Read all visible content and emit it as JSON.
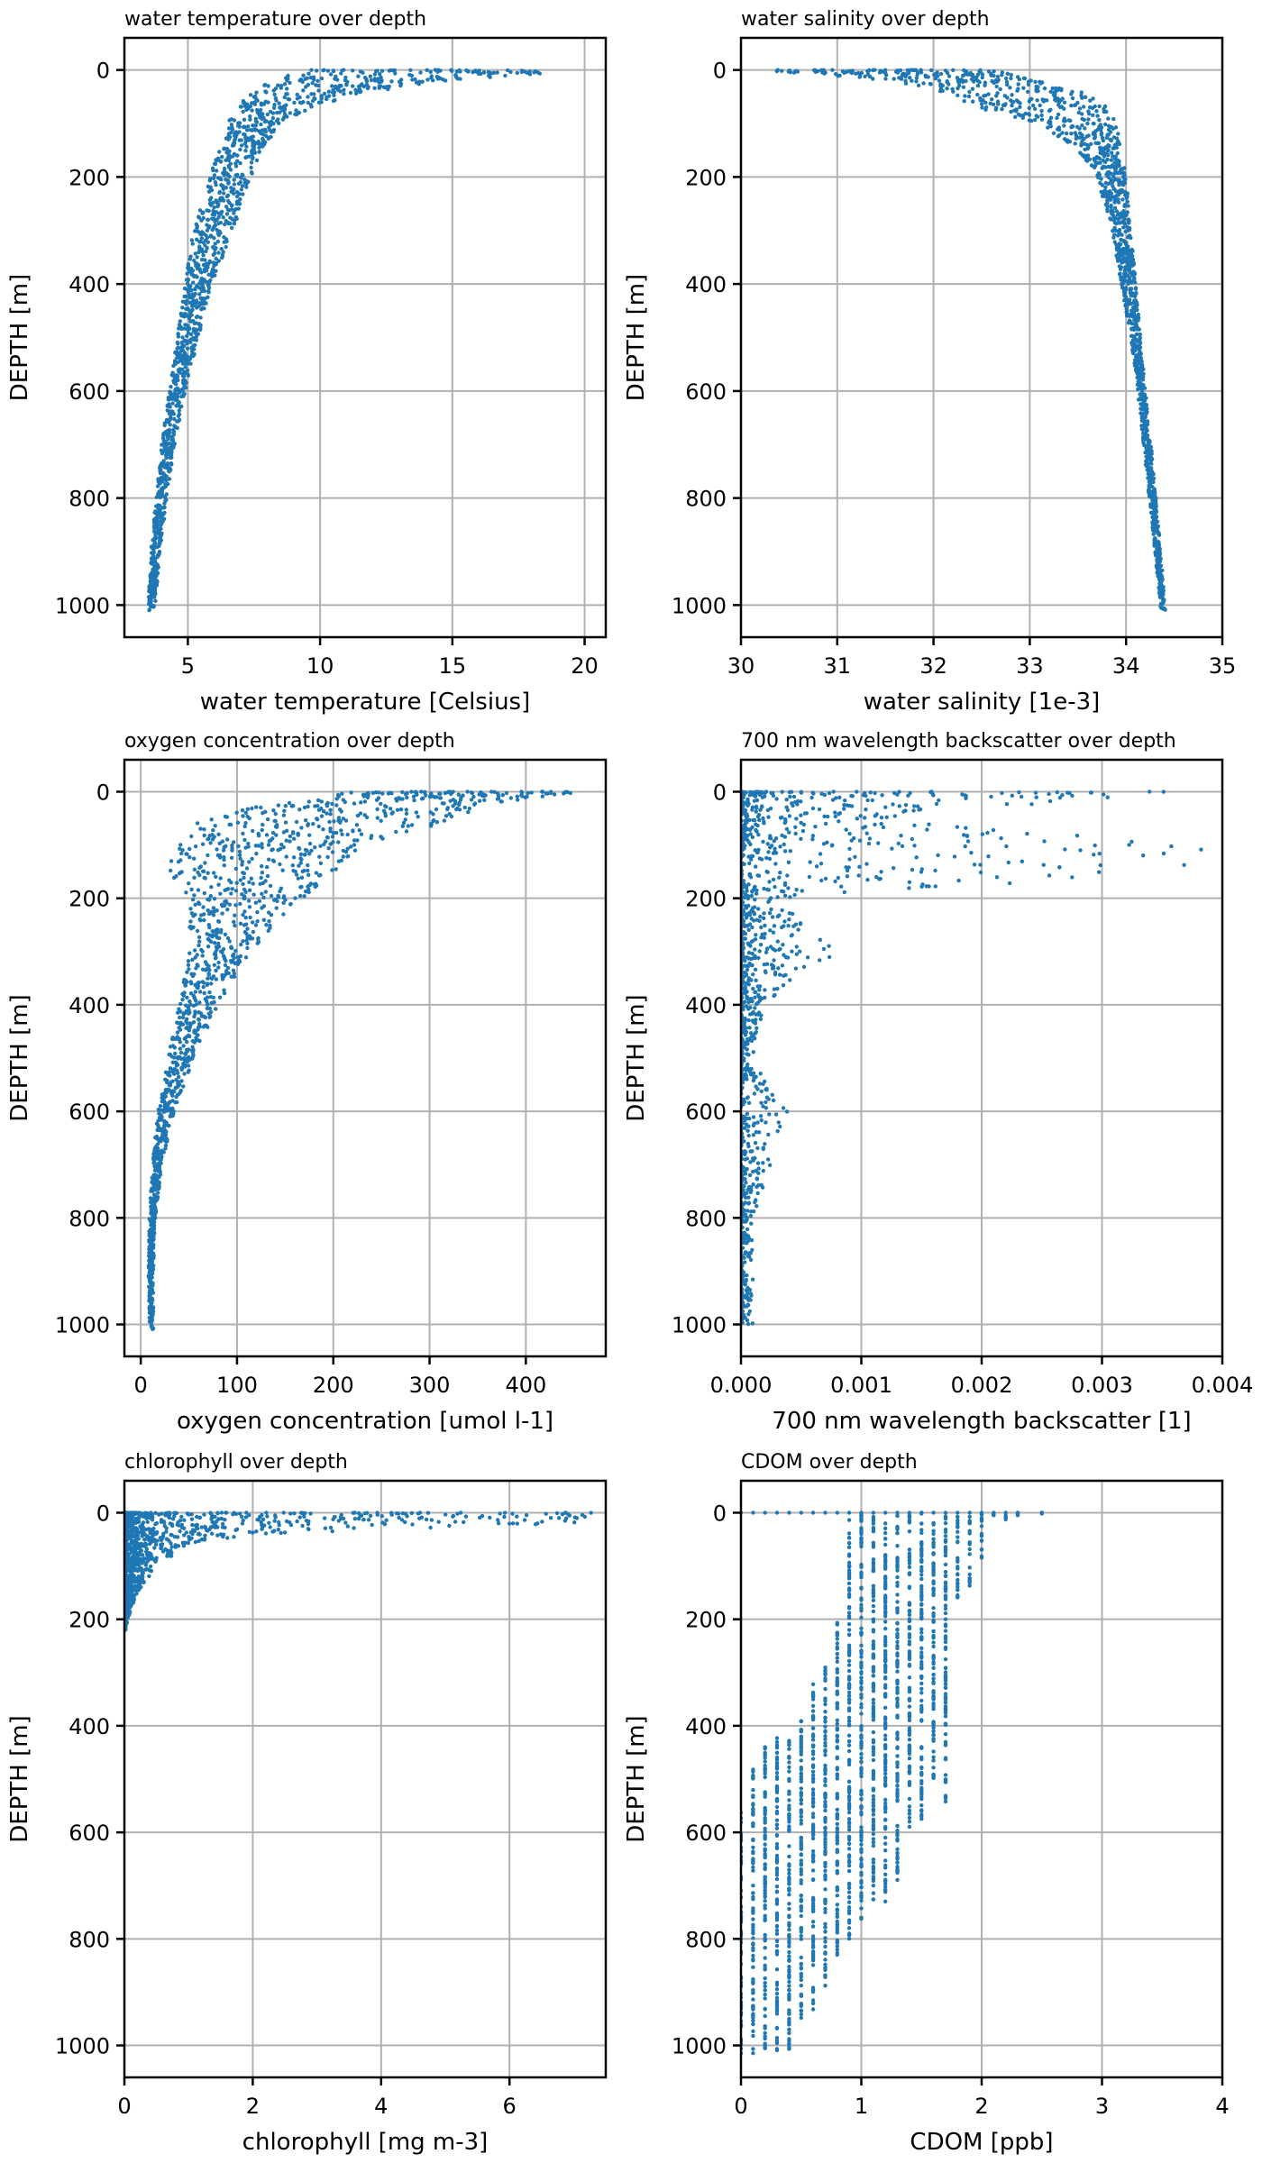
{
  "figure": {
    "marker_color": "#1f77b4"
  },
  "chart_data": [
    {
      "type": "scatter",
      "title": "water temperature over depth",
      "xlabel": "water temperature [Celsius]",
      "ylabel": "DEPTH [m]",
      "xlim": [
        2.6,
        20.8
      ],
      "ylim": [
        1060,
        -60
      ],
      "y_inverted": true,
      "grid": true,
      "xticks": [
        5,
        10,
        15,
        20
      ],
      "xtick_labels": [
        "5",
        "10",
        "15",
        "20"
      ],
      "yticks": [
        0,
        200,
        400,
        600,
        800,
        1000
      ],
      "ytick_labels": [
        "0",
        "200",
        "400",
        "600",
        "800",
        "1000"
      ],
      "profile_envelope": [
        {
          "depth": 0,
          "x_min": 9.5,
          "x_max": 20.0
        },
        {
          "depth": 10,
          "x_min": 8.8,
          "x_max": 17.6
        },
        {
          "depth": 25,
          "x_min": 8.0,
          "x_max": 14.0
        },
        {
          "depth": 50,
          "x_min": 7.2,
          "x_max": 11.0
        },
        {
          "depth": 75,
          "x_min": 6.8,
          "x_max": 9.5
        },
        {
          "depth": 100,
          "x_min": 6.5,
          "x_max": 8.5
        },
        {
          "depth": 150,
          "x_min": 6.2,
          "x_max": 7.8
        },
        {
          "depth": 200,
          "x_min": 5.8,
          "x_max": 7.4
        },
        {
          "depth": 300,
          "x_min": 5.2,
          "x_max": 6.7
        },
        {
          "depth": 400,
          "x_min": 4.9,
          "x_max": 5.9
        },
        {
          "depth": 500,
          "x_min": 4.6,
          "x_max": 5.4
        },
        {
          "depth": 600,
          "x_min": 4.3,
          "x_max": 4.9
        },
        {
          "depth": 700,
          "x_min": 4.0,
          "x_max": 4.5
        },
        {
          "depth": 800,
          "x_min": 3.8,
          "x_max": 4.2
        },
        {
          "depth": 900,
          "x_min": 3.6,
          "x_max": 3.95
        },
        {
          "depth": 1010,
          "x_min": 3.5,
          "x_max": 3.75
        }
      ]
    },
    {
      "type": "scatter",
      "title": "water salinity over depth",
      "xlabel": "water salinity [1e-3]",
      "ylabel": "DEPTH [m]",
      "xlim": [
        30,
        35
      ],
      "ylim": [
        1060,
        -60
      ],
      "y_inverted": true,
      "grid": true,
      "xticks": [
        30,
        31,
        32,
        33,
        34,
        35
      ],
      "xtick_labels": [
        "30",
        "31",
        "32",
        "33",
        "34",
        "35"
      ],
      "yticks": [
        0,
        200,
        400,
        600,
        800,
        1000
      ],
      "ytick_labels": [
        "0",
        "200",
        "400",
        "600",
        "800",
        "1000"
      ],
      "profile_envelope": [
        {
          "depth": 0,
          "x_min": 30.2,
          "x_max": 32.6
        },
        {
          "depth": 20,
          "x_min": 31.6,
          "x_max": 33.1
        },
        {
          "depth": 50,
          "x_min": 32.2,
          "x_max": 33.7
        },
        {
          "depth": 80,
          "x_min": 32.6,
          "x_max": 33.85
        },
        {
          "depth": 100,
          "x_min": 33.1,
          "x_max": 33.9
        },
        {
          "depth": 150,
          "x_min": 33.5,
          "x_max": 33.95
        },
        {
          "depth": 200,
          "x_min": 33.7,
          "x_max": 34.0
        },
        {
          "depth": 300,
          "x_min": 33.85,
          "x_max": 34.05
        },
        {
          "depth": 400,
          "x_min": 33.95,
          "x_max": 34.1
        },
        {
          "depth": 500,
          "x_min": 34.05,
          "x_max": 34.15
        },
        {
          "depth": 600,
          "x_min": 34.12,
          "x_max": 34.2
        },
        {
          "depth": 700,
          "x_min": 34.18,
          "x_max": 34.26
        },
        {
          "depth": 800,
          "x_min": 34.24,
          "x_max": 34.31
        },
        {
          "depth": 900,
          "x_min": 34.3,
          "x_max": 34.36
        },
        {
          "depth": 1010,
          "x_min": 34.36,
          "x_max": 34.41
        }
      ]
    },
    {
      "type": "scatter",
      "title": "oxygen concentration over depth",
      "xlabel": "oxygen concentration [umol l-1]",
      "ylabel": "DEPTH [m]",
      "xlim": [
        -17,
        483
      ],
      "ylim": [
        1060,
        -60
      ],
      "y_inverted": true,
      "grid": true,
      "xticks": [
        0,
        100,
        200,
        300,
        400
      ],
      "xtick_labels": [
        "0",
        "100",
        "200",
        "300",
        "400"
      ],
      "yticks": [
        0,
        200,
        400,
        600,
        800,
        1000
      ],
      "ytick_labels": [
        "0",
        "200",
        "400",
        "600",
        "800",
        "1000"
      ],
      "profile_envelope": [
        {
          "depth": 0,
          "x_min": 220,
          "x_max": 460
        },
        {
          "depth": 25,
          "x_min": 130,
          "x_max": 360
        },
        {
          "depth": 50,
          "x_min": 60,
          "x_max": 330
        },
        {
          "depth": 100,
          "x_min": 40,
          "x_max": 230
        },
        {
          "depth": 150,
          "x_min": 25,
          "x_max": 200
        },
        {
          "depth": 200,
          "x_min": 50,
          "x_max": 170
        },
        {
          "depth": 250,
          "x_min": 50,
          "x_max": 140
        },
        {
          "depth": 300,
          "x_min": 50,
          "x_max": 115
        },
        {
          "depth": 400,
          "x_min": 40,
          "x_max": 80
        },
        {
          "depth": 500,
          "x_min": 28,
          "x_max": 55
        },
        {
          "depth": 600,
          "x_min": 18,
          "x_max": 35
        },
        {
          "depth": 700,
          "x_min": 12,
          "x_max": 22
        },
        {
          "depth": 800,
          "x_min": 9,
          "x_max": 15
        },
        {
          "depth": 900,
          "x_min": 8,
          "x_max": 13
        },
        {
          "depth": 1010,
          "x_min": 9,
          "x_max": 13
        }
      ]
    },
    {
      "type": "scatter",
      "title": "700 nm wavelength backscatter over depth",
      "xlabel": "700 nm wavelength backscatter [1]",
      "ylabel": "DEPTH [m]",
      "xlim": [
        0,
        0.004
      ],
      "ylim": [
        1060,
        -60
      ],
      "y_inverted": true,
      "grid": true,
      "xticks": [
        0,
        0.001,
        0.002,
        0.003,
        0.004
      ],
      "xtick_labels": [
        "0.000",
        "0.001",
        "0.002",
        "0.003",
        "0.004"
      ],
      "yticks": [
        0,
        200,
        400,
        600,
        800,
        1000
      ],
      "ytick_labels": [
        "0",
        "200",
        "400",
        "600",
        "800",
        "1000"
      ],
      "profile_envelope": [
        {
          "depth": 0,
          "x_min": 0.0,
          "x_max": 0.0037
        },
        {
          "depth": 50,
          "x_min": 0.0,
          "x_max": 0.0012
        },
        {
          "depth": 100,
          "x_min": 0.0,
          "x_max": 0.0039
        },
        {
          "depth": 150,
          "x_min": 0.0,
          "x_max": 0.0039
        },
        {
          "depth": 200,
          "x_min": 0.0,
          "x_max": 0.0003
        },
        {
          "depth": 300,
          "x_min": 0.0,
          "x_max": 0.0008
        },
        {
          "depth": 400,
          "x_min": 0.0,
          "x_max": 0.0002
        },
        {
          "depth": 500,
          "x_min": 0.0,
          "x_max": 0.0001
        },
        {
          "depth": 600,
          "x_min": 0.0,
          "x_max": 0.0004
        },
        {
          "depth": 800,
          "x_min": 0.0,
          "x_max": 0.0001
        },
        {
          "depth": 1000,
          "x_min": 0.0,
          "x_max": 0.0001
        }
      ]
    },
    {
      "type": "scatter",
      "title": "chlorophyll over depth",
      "xlabel": "chlorophyll [mg m-3]",
      "ylabel": "DEPTH [m]",
      "xlim": [
        0,
        7.5
      ],
      "ylim": [
        1060,
        -60
      ],
      "y_inverted": true,
      "grid": true,
      "xticks": [
        0,
        2,
        4,
        6
      ],
      "xtick_labels": [
        "0",
        "2",
        "4",
        "6"
      ],
      "yticks": [
        0,
        200,
        400,
        600,
        800,
        1000
      ],
      "ytick_labels": [
        "0",
        "200",
        "400",
        "600",
        "800",
        "1000"
      ],
      "profile_envelope": [
        {
          "depth": 0,
          "x_min": 0.0,
          "x_max": 7.5
        },
        {
          "depth": 20,
          "x_min": 0.0,
          "x_max": 7.0
        },
        {
          "depth": 40,
          "x_min": 0.0,
          "x_max": 2.0
        },
        {
          "depth": 60,
          "x_min": 0.0,
          "x_max": 1.0
        },
        {
          "depth": 100,
          "x_min": 0.0,
          "x_max": 0.5
        },
        {
          "depth": 150,
          "x_min": 0.0,
          "x_max": 0.2
        },
        {
          "depth": 200,
          "x_min": 0.0,
          "x_max": 0.05
        },
        {
          "depth": 220,
          "x_min": 0.0,
          "x_max": 0.02
        }
      ]
    },
    {
      "type": "scatter",
      "title": "CDOM over depth",
      "xlabel": "CDOM [ppb]",
      "ylabel": "DEPTH [m]",
      "xlim": [
        0,
        4
      ],
      "ylim": [
        1060,
        -60
      ],
      "y_inverted": true,
      "grid": true,
      "xticks": [
        0,
        1,
        2,
        3,
        4
      ],
      "xtick_labels": [
        "0",
        "1",
        "2",
        "3",
        "4"
      ],
      "yticks": [
        0,
        200,
        400,
        600,
        800,
        1000
      ],
      "ytick_labels": [
        "0",
        "200",
        "400",
        "600",
        "800",
        "1000"
      ],
      "quantized_columns": [
        {
          "x": 0.0,
          "depth_min": 560,
          "depth_max": 1015
        },
        {
          "x": 0.1,
          "depth_min": 480,
          "depth_max": 1015
        },
        {
          "x": 0.2,
          "depth_min": 430,
          "depth_max": 1015
        },
        {
          "x": 0.3,
          "depth_min": 420,
          "depth_max": 1015
        },
        {
          "x": 0.4,
          "depth_min": 420,
          "depth_max": 1015
        },
        {
          "x": 0.5,
          "depth_min": 360,
          "depth_max": 960
        },
        {
          "x": 0.6,
          "depth_min": 310,
          "depth_max": 940
        },
        {
          "x": 0.7,
          "depth_min": 280,
          "depth_max": 890
        },
        {
          "x": 0.8,
          "depth_min": 200,
          "depth_max": 830
        },
        {
          "x": 0.9,
          "depth_min": 0,
          "depth_max": 800
        },
        {
          "x": 1.0,
          "depth_min": 0,
          "depth_max": 770
        },
        {
          "x": 1.1,
          "depth_min": 0,
          "depth_max": 730
        },
        {
          "x": 1.2,
          "depth_min": 0,
          "depth_max": 730
        },
        {
          "x": 1.3,
          "depth_min": 0,
          "depth_max": 690
        },
        {
          "x": 1.4,
          "depth_min": 0,
          "depth_max": 590
        },
        {
          "x": 1.5,
          "depth_min": 0,
          "depth_max": 580
        },
        {
          "x": 1.6,
          "depth_min": 0,
          "depth_max": 500
        },
        {
          "x": 1.7,
          "depth_min": 0,
          "depth_max": 560
        },
        {
          "x": 1.8,
          "depth_min": 0,
          "depth_max": 160
        },
        {
          "x": 1.9,
          "depth_min": 0,
          "depth_max": 140
        },
        {
          "x": 2.0,
          "depth_min": 0,
          "depth_max": 90
        },
        {
          "x": 2.1,
          "depth_min": 0,
          "depth_max": 5
        },
        {
          "x": 2.2,
          "depth_min": 0,
          "depth_max": 15
        },
        {
          "x": 2.3,
          "depth_min": 0,
          "depth_max": 5
        },
        {
          "x": 2.5,
          "depth_min": 0,
          "depth_max": 2
        }
      ]
    }
  ]
}
